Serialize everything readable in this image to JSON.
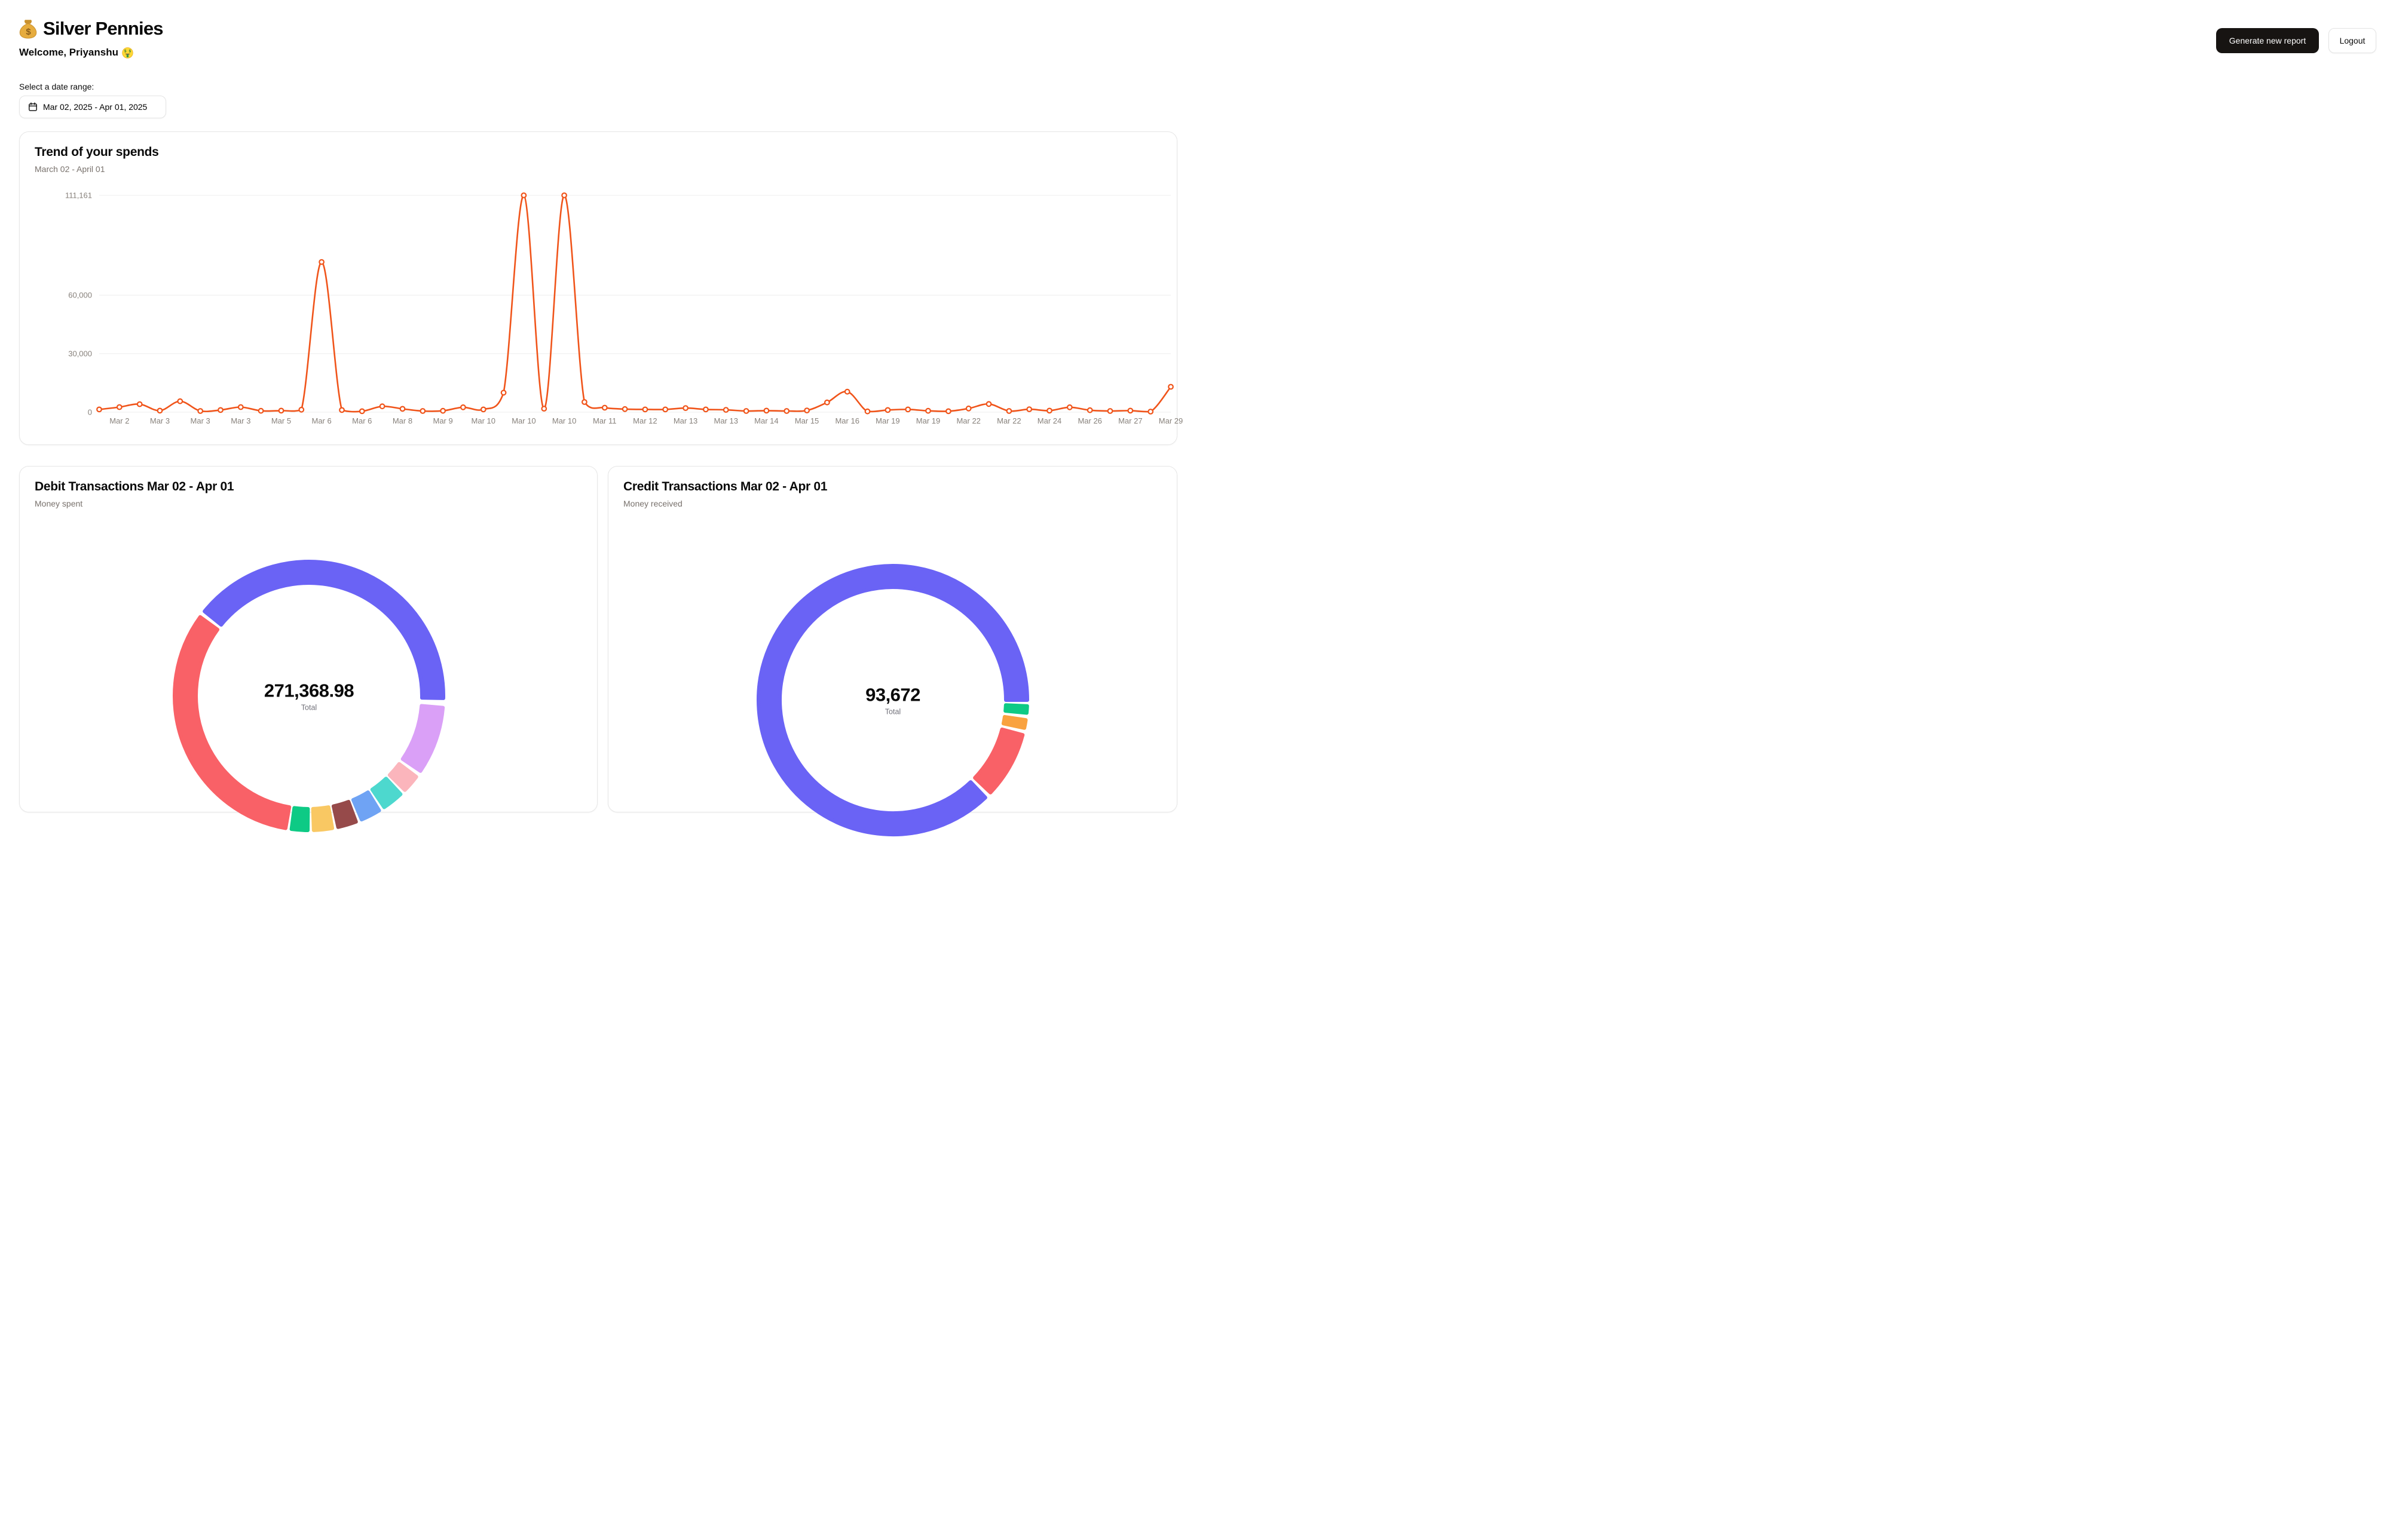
{
  "header": {
    "app_title": "Silver Pennies",
    "welcome": "Welcome, Priyanshu",
    "money_bag_icon": "money-bag",
    "money_face_icon": "money-mouth-face"
  },
  "actions": {
    "generate_report": "Generate new report",
    "logout": "Logout"
  },
  "date_filter": {
    "label": "Select a date range:",
    "value": "Mar 02, 2025 - Apr 01, 2025",
    "calendar_icon": "calendar"
  },
  "chart_data": [
    {
      "type": "line",
      "title": "Trend of your spends",
      "subtitle": "March 02 - April 01",
      "line_color": "#F0541A",
      "grid": true,
      "ylim": [
        0,
        111161
      ],
      "y_ticks": [
        0,
        30000,
        60000,
        111161
      ],
      "x_tick_labels": [
        "Mar 2",
        "Mar 3",
        "Mar 3",
        "Mar 3",
        "Mar 5",
        "Mar 6",
        "Mar 6",
        "Mar 8",
        "Mar 9",
        "Mar 10",
        "Mar 10",
        "Mar 10",
        "Mar 11",
        "Mar 12",
        "Mar 13",
        "Mar 13",
        "Mar 14",
        "Mar 15",
        "Mar 16",
        "Mar 19",
        "Mar 19",
        "Mar 22",
        "Mar 22",
        "Mar 24",
        "Mar 26",
        "Mar 27",
        "Mar 29"
      ],
      "values": [
        1400,
        2600,
        4100,
        800,
        5600,
        600,
        1100,
        2600,
        700,
        800,
        1300,
        77000,
        1100,
        500,
        3000,
        1700,
        600,
        700,
        2500,
        1400,
        10000,
        111161,
        1800,
        111161,
        5200,
        2300,
        1600,
        1400,
        1400,
        2100,
        1400,
        1200,
        600,
        800,
        600,
        900,
        5000,
        10500,
        400,
        1100,
        1400,
        700,
        500,
        1900,
        4200,
        600,
        1500,
        800,
        2500,
        1000,
        600,
        800,
        300,
        13000
      ]
    },
    {
      "type": "pie",
      "title": "Debit Transactions Mar 02 - Apr 01",
      "subtitle": "Money spent",
      "center_value": "271,368.98",
      "center_label": "Total",
      "segments": [
        {
          "name": "indigo",
          "color": "#6A63F5",
          "start": -51,
          "end": 91,
          "approx_pct": 39.4
        },
        {
          "name": "plum",
          "color": "#DAA0F7",
          "start": 95,
          "end": 124,
          "approx_pct": 8.1
        },
        {
          "name": "pink",
          "color": "#FBB5BC",
          "start": 127,
          "end": 134.5,
          "approx_pct": 2.1
        },
        {
          "name": "teal",
          "color": "#4DD8CE",
          "start": 137,
          "end": 146,
          "approx_pct": 2.5
        },
        {
          "name": "blue",
          "color": "#6FA3F4",
          "start": 148.5,
          "end": 157,
          "approx_pct": 2.4
        },
        {
          "name": "maroon",
          "color": "#964A4A",
          "start": 159.5,
          "end": 167.5,
          "approx_pct": 2.2
        },
        {
          "name": "yellow",
          "color": "#F9C863",
          "start": 170,
          "end": 178,
          "approx_pct": 2.2
        },
        {
          "name": "green",
          "color": "#0ECA85",
          "start": 180.5,
          "end": 187.5,
          "approx_pct": 1.9
        },
        {
          "name": "red",
          "color": "#F96167",
          "start": 190,
          "end": 306,
          "approx_pct": 32.2
        }
      ]
    },
    {
      "type": "pie",
      "title": "Credit Transactions Mar 02 - Apr 01",
      "subtitle": "Money received",
      "center_value": "93,672",
      "center_label": "Total",
      "segments": [
        {
          "name": "indigo",
          "color": "#6A63F5",
          "start": 136.5,
          "end": 450,
          "approx_pct": 87.1
        },
        {
          "name": "green",
          "color": "#0ECA85",
          "start": 92.5,
          "end": 95.5,
          "approx_pct": 0.8
        },
        {
          "name": "orange",
          "color": "#F9A23F",
          "start": 98.5,
          "end": 102,
          "approx_pct": 1.0
        },
        {
          "name": "red",
          "color": "#F96167",
          "start": 105,
          "end": 133.5,
          "approx_pct": 7.9
        }
      ]
    }
  ]
}
